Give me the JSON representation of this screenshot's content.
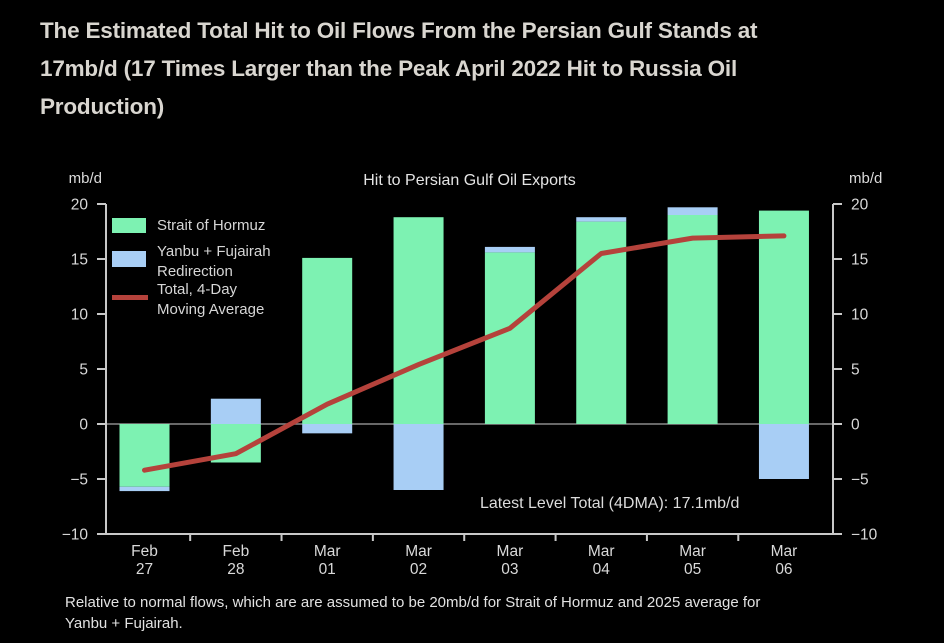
{
  "headline": {
    "lines": [
      "The Estimated Total Hit to Oil Flows From the Persian Gulf Stands at",
      "17mb/d (17 Times Larger than the Peak April 2022 Hit to Russia Oil",
      "Production)"
    ]
  },
  "chart": {
    "title": "Hit to Persian Gulf Oil Exports",
    "y_axis_unit_left": "mb/d",
    "y_axis_unit_right": "mb/d",
    "annotation": "Latest Level Total (4DMA): 17.1mb/d",
    "legend": {
      "hormuz": {
        "lines": [
          "Strait of Hormuz"
        ]
      },
      "yanbu": {
        "lines": [
          "Yanbu + Fujairah",
          "Redirection"
        ]
      },
      "total": {
        "lines": [
          "Total, 4-Day",
          "Moving Average"
        ]
      }
    }
  },
  "chart_data": {
    "type": "bar",
    "title": "Hit to Persian Gulf Oil Exports",
    "y_unit": "mb/d",
    "ylim": [
      -10,
      20
    ],
    "yticks": [
      20,
      15,
      10,
      5,
      0,
      -5,
      -10
    ],
    "grid": false,
    "legend_position": "upper-left",
    "latest_level_total_4dma": "17.1mb/d",
    "categories": [
      [
        "Feb",
        "27"
      ],
      [
        "Feb",
        "28"
      ],
      [
        "Mar",
        "01"
      ],
      [
        "Mar",
        "02"
      ],
      [
        "Mar",
        "03"
      ],
      [
        "Mar",
        "04"
      ],
      [
        "Mar",
        "05"
      ],
      [
        "Mar",
        "06"
      ]
    ],
    "series": [
      {
        "id": "hormuz",
        "name": "Strait of Hormuz",
        "type": "bar",
        "color": "#7DF2B2",
        "values": [
          -5.7,
          -3.5,
          15.1,
          18.8,
          15.6,
          18.4,
          19.0,
          19.4
        ]
      },
      {
        "id": "yanbu",
        "name": "Yanbu + Fujairah Redirection",
        "type": "bar",
        "color": "#A8CEF5",
        "values": [
          -0.4,
          2.3,
          -0.85,
          -6.0,
          0.5,
          0.4,
          0.7,
          -5.0
        ]
      },
      {
        "id": "total-4dma",
        "name": "Total, 4-Day Moving Average",
        "type": "line",
        "color": "#B5423B",
        "values": [
          -4.2,
          -2.7,
          1.8,
          5.4,
          8.7,
          15.5,
          16.9,
          17.1
        ]
      }
    ]
  },
  "footnote": {
    "lines": [
      "Relative to normal flows, which are are assumed to be 20mb/d for Strait of Hormuz and 2025 average for",
      "Yanbu + Fujairah."
    ]
  }
}
